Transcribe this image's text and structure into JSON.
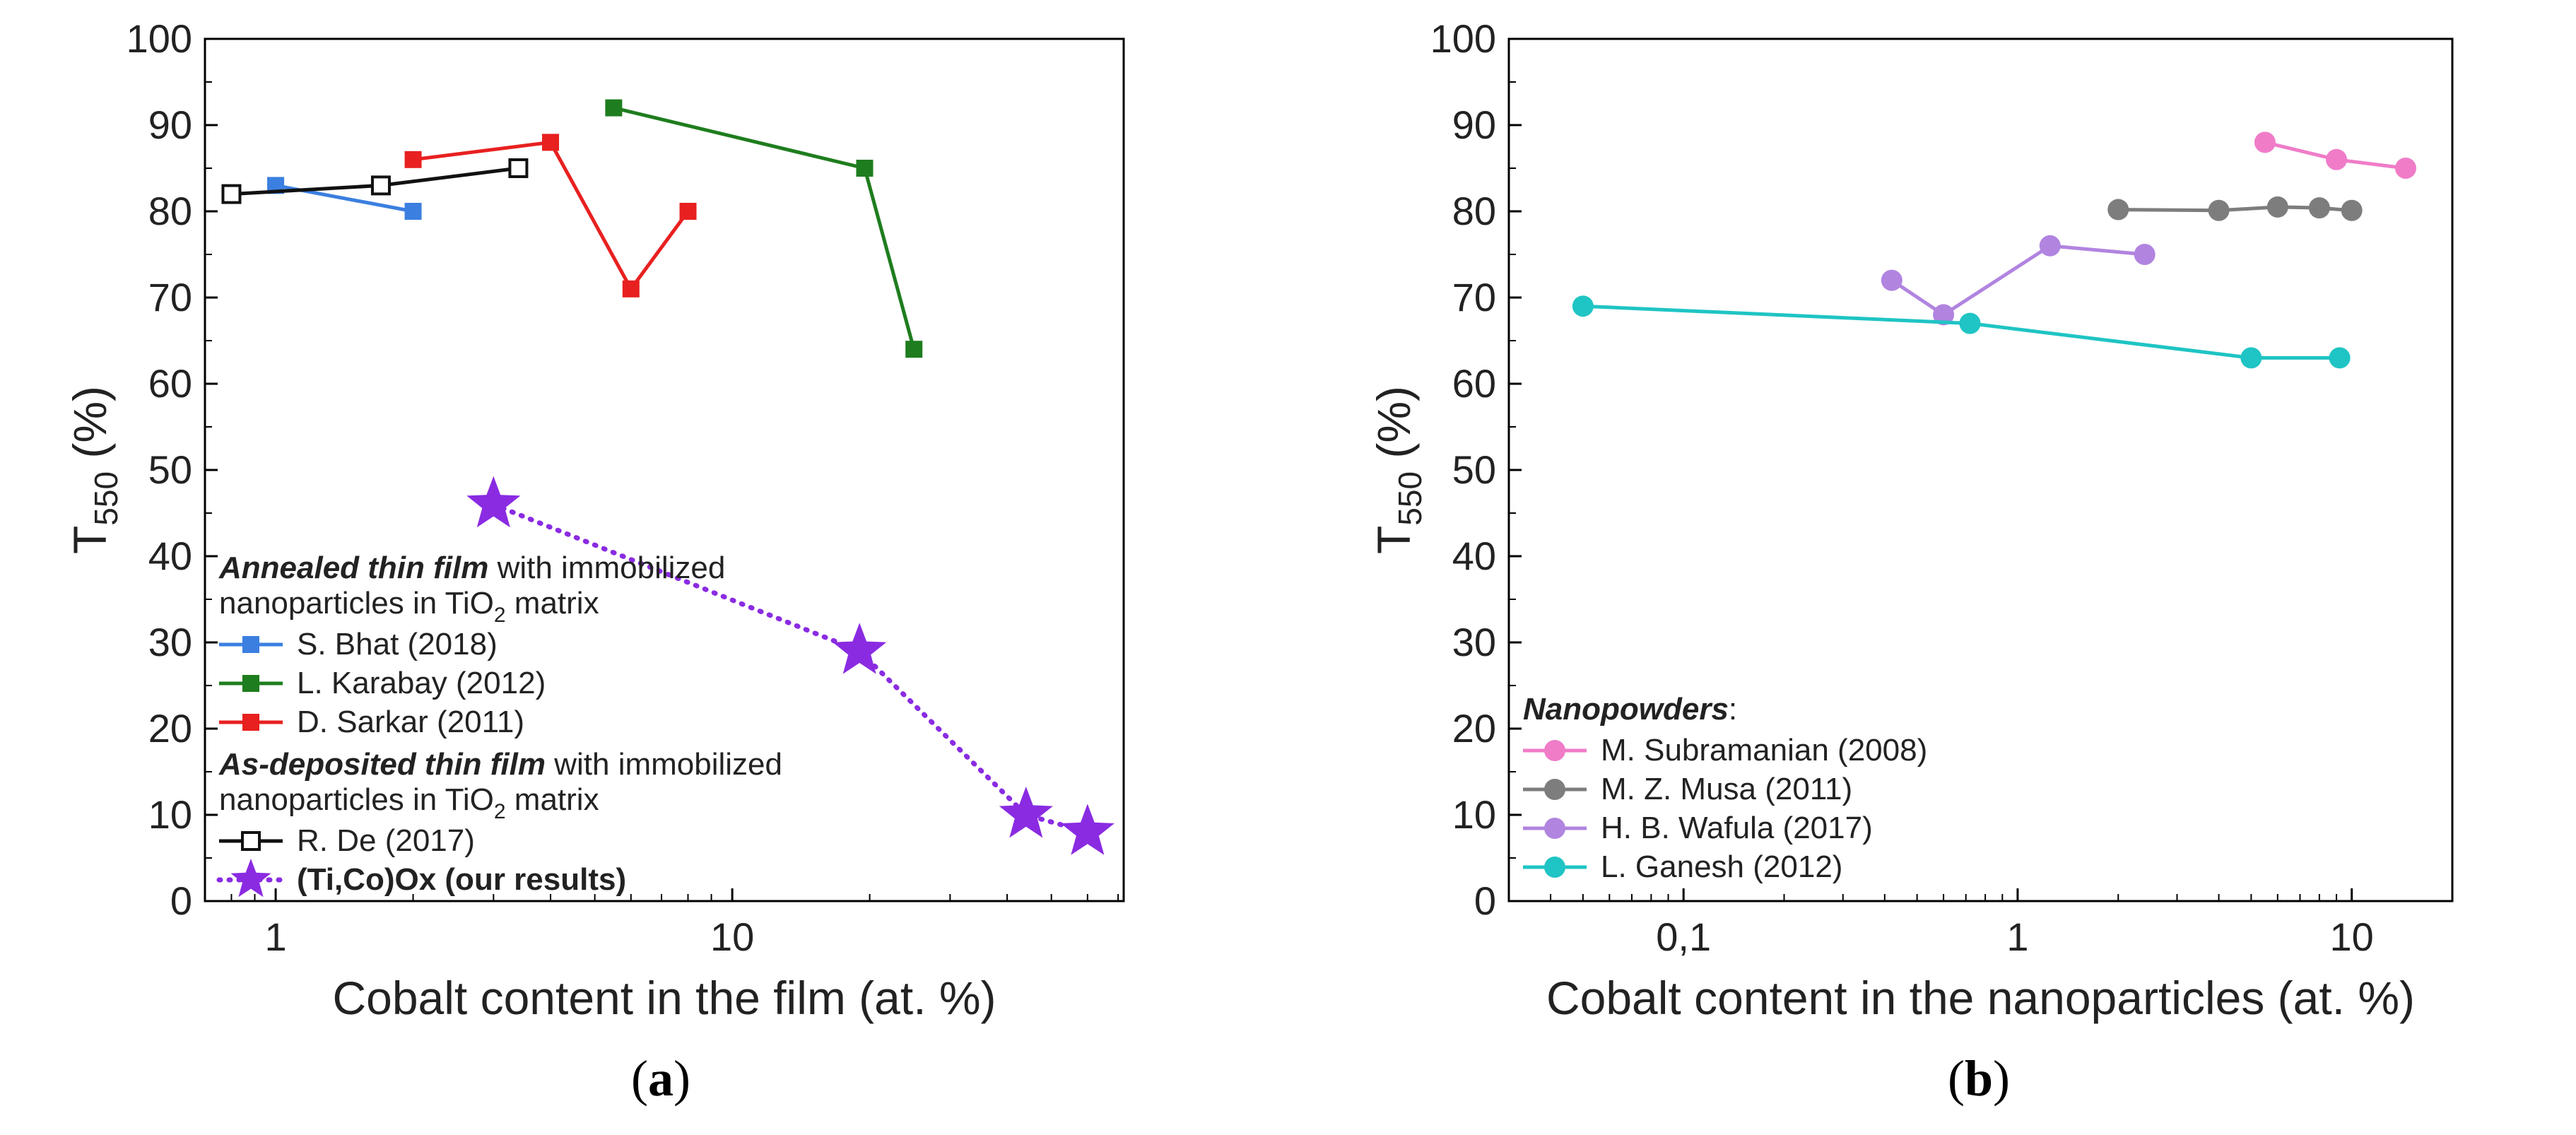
{
  "chart_data": [
    {
      "panel": "a",
      "panel_label": {
        "open": "(",
        "letter": "a",
        "close": ")"
      },
      "type": "line",
      "scale_x": "log",
      "xlim": [
        0.7,
        72
      ],
      "ylim": [
        0,
        100
      ],
      "xlabel": "Cobalt content in the film (at. %)",
      "ylabel": {
        "main": "T",
        "sub": "550",
        "unit": " (%)"
      },
      "x_ticks": [
        {
          "value": 1,
          "label": "1"
        },
        {
          "value": 10,
          "label": "10"
        }
      ],
      "y_ticks": [
        0,
        10,
        20,
        30,
        40,
        50,
        60,
        70,
        80,
        90,
        100
      ],
      "legend": {
        "placement": "bottom-left",
        "groups": [
          {
            "heading_italic": "Annealed thin film",
            "heading_rest": " with immobilized",
            "line2_pre": "nanoparticles in TiO",
            "line2_sub": "2",
            "line2_post": " matrix",
            "series_idx": [
              0,
              1,
              2
            ]
          },
          {
            "heading_italic": "As-deposited thin film",
            "heading_rest": " with immobilized",
            "line2_pre": "nanoparticles in TiO",
            "line2_sub": "2",
            "line2_post": " matrix",
            "series_idx": [
              3,
              4
            ]
          }
        ]
      },
      "series": [
        {
          "name": "S. Bhat (2018)",
          "color": "#3b7fe0",
          "marker": "square-filled",
          "dash": "solid",
          "points": [
            [
              1.0,
              83
            ],
            [
              2.0,
              80
            ]
          ]
        },
        {
          "name": "L. Karabay (2012)",
          "color": "#1e7d1e",
          "marker": "square-filled",
          "dash": "solid",
          "points": [
            [
              5.5,
              92
            ],
            [
              19.5,
              85
            ],
            [
              25,
              64
            ]
          ]
        },
        {
          "name": "D. Sarkar (2011)",
          "color": "#e82020",
          "marker": "square-filled",
          "dash": "solid",
          "points": [
            [
              2.0,
              86
            ],
            [
              4.0,
              88
            ],
            [
              6.0,
              71
            ],
            [
              8.0,
              80
            ]
          ]
        },
        {
          "name": "R. De (2017)",
          "color": "#111111",
          "marker": "square-open",
          "dash": "solid",
          "points": [
            [
              0.8,
              82
            ],
            [
              1.7,
              83
            ],
            [
              3.4,
              85
            ]
          ]
        },
        {
          "name": "(Ti,Co)Ox (our results)",
          "color": "#8a2be2",
          "marker": "star",
          "dash": "dotted",
          "bold_label": true,
          "points": [
            [
              3.0,
              46
            ],
            [
              19,
              29
            ],
            [
              44,
              10
            ],
            [
              60,
              8
            ]
          ]
        }
      ]
    },
    {
      "panel": "b",
      "panel_label": {
        "open": "(",
        "letter": "b",
        "close": ")"
      },
      "type": "line",
      "scale_x": "log",
      "xlim": [
        0.03,
        20
      ],
      "ylim": [
        0,
        100
      ],
      "xlabel": "Cobalt content in the nanoparticles (at. %)",
      "ylabel": {
        "main": "T",
        "sub": "550",
        "unit": " (%)"
      },
      "x_ticks": [
        {
          "value": 0.1,
          "label": "0,1"
        },
        {
          "value": 1,
          "label": "1"
        },
        {
          "value": 10,
          "label": "10"
        }
      ],
      "y_ticks": [
        0,
        10,
        20,
        30,
        40,
        50,
        60,
        70,
        80,
        90,
        100
      ],
      "legend": {
        "placement": "bottom-left",
        "heading_italic": "Nanopowders",
        "heading_rest": ":"
      },
      "series": [
        {
          "name": "M. Subramanian (2008)",
          "color": "#f07cc8",
          "marker": "circle",
          "dash": "solid",
          "points": [
            [
              5.5,
              88
            ],
            [
              9,
              86
            ],
            [
              14.5,
              85
            ]
          ]
        },
        {
          "name": "M. Z. Musa (2011)",
          "color": "#7d7d7d",
          "marker": "circle",
          "dash": "solid",
          "points": [
            [
              2.0,
              80.2
            ],
            [
              4.0,
              80.1
            ],
            [
              6.0,
              80.5
            ],
            [
              8.0,
              80.4
            ],
            [
              10,
              80.1
            ]
          ]
        },
        {
          "name": "H. B. Wafula (2017)",
          "color": "#b184e0",
          "marker": "circle",
          "dash": "solid",
          "points": [
            [
              0.42,
              72
            ],
            [
              0.6,
              68
            ],
            [
              1.25,
              76
            ],
            [
              2.4,
              75
            ]
          ]
        },
        {
          "name": "L. Ganesh (2012)",
          "color": "#1fc4c4",
          "marker": "circle",
          "dash": "solid",
          "points": [
            [
              0.05,
              69
            ],
            [
              0.72,
              67
            ],
            [
              5,
              63
            ],
            [
              9.2,
              63
            ]
          ]
        }
      ]
    }
  ]
}
